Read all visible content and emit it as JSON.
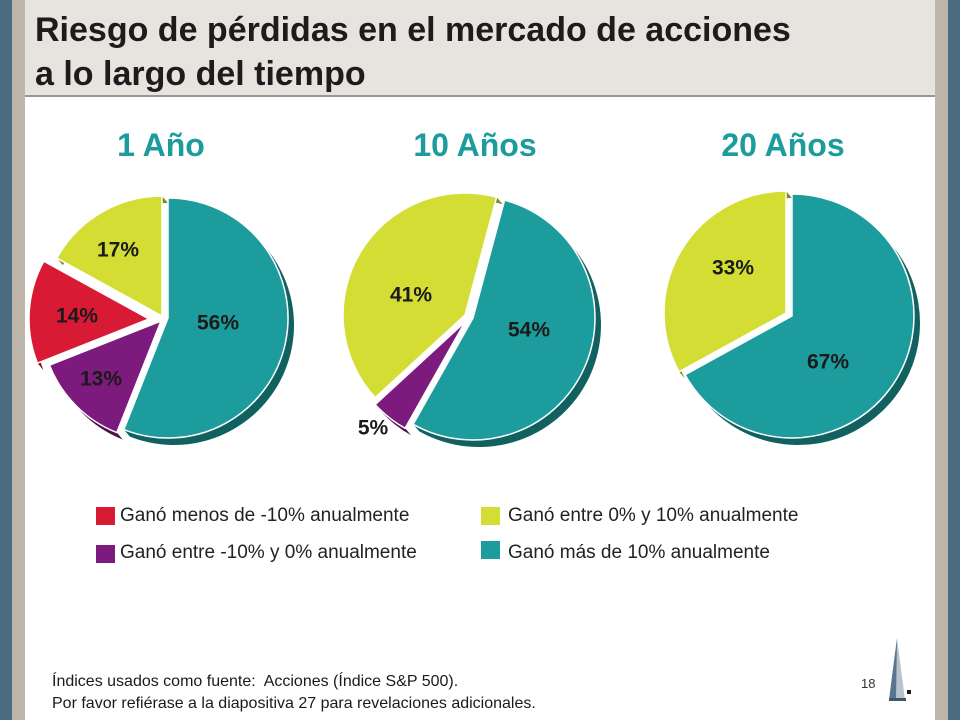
{
  "title": {
    "line1": "Riesgo de pérdidas en el mercado de acciones",
    "line2": "a lo largo del tiempo"
  },
  "legend": {
    "items": [
      {
        "label": "Ganó menos de -10% anualmente",
        "color": "#d91a35"
      },
      {
        "label": "Ganó entre -10% y 0% anualmente",
        "color": "#7d1a7d"
      },
      {
        "label": "Ganó entre 0% y 10% anualmente",
        "color": "#d3dd33"
      },
      {
        "label": "Ganó más de 10% anualmente",
        "color": "#1d9c9d"
      }
    ]
  },
  "chart_data": [
    {
      "type": "pie",
      "title": "1 Año",
      "unit": "%",
      "values": [
        14,
        13,
        17,
        56
      ]
    },
    {
      "type": "pie",
      "title": "10 Años",
      "unit": "%",
      "values": [
        0,
        5,
        41,
        54
      ]
    },
    {
      "type": "pie",
      "title": "20 Años",
      "unit": "%",
      "values": [
        0,
        0,
        33,
        67
      ]
    }
  ],
  "footer": {
    "source_note": "Índices usados como fuente:  Acciones (Índice S&P 500).",
    "disclosure_note": "Por favor refiérase a la diapositiva 27 para revelaciones adicionales.",
    "page_number": "18"
  },
  "logo": {
    "icon": "pyramid-logo-icon"
  },
  "colors": {
    "heading": "#1d9c9d",
    "title_text": "#1c1c1c"
  }
}
